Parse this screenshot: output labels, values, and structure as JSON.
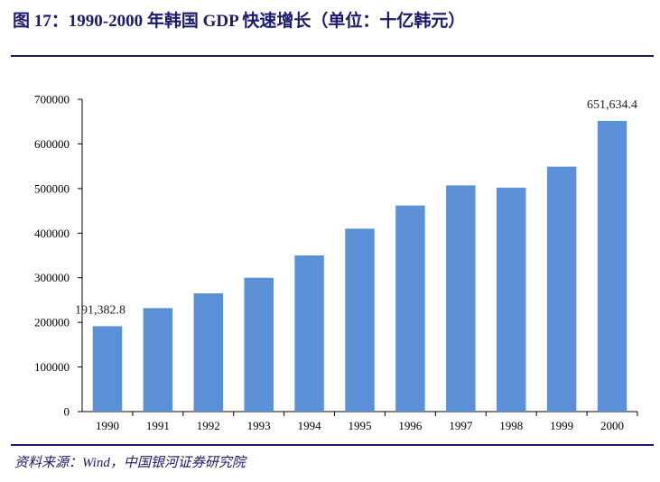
{
  "header": {
    "title": "图 17：1990-2000 年韩国 GDP 快速增长（单位：十亿韩元）"
  },
  "footer": {
    "source": "资料来源：Wind，中国银河证券研究院"
  },
  "colors": {
    "bar": "#5b8fd6",
    "title": "#1a1a6e",
    "axis": "#000000"
  },
  "chart_data": {
    "type": "bar",
    "title": "",
    "xlabel": "",
    "ylabel": "",
    "categories": [
      "1990",
      "1991",
      "1992",
      "1993",
      "1994",
      "1995",
      "1996",
      "1997",
      "1998",
      "1999",
      "2000"
    ],
    "values": [
      191382.8,
      232000,
      265000,
      300000,
      350000,
      410000,
      462000,
      507000,
      502000,
      549000,
      651634.4
    ],
    "ylim": [
      0,
      700000
    ],
    "yticks": [
      "0",
      "100000",
      "200000",
      "300000",
      "400000",
      "500000",
      "600000",
      "700000"
    ],
    "data_labels": [
      {
        "category": "1990",
        "text": "191,382.8"
      },
      {
        "category": "2000",
        "text": "651,634.4"
      }
    ],
    "grid": false,
    "legend": "none"
  }
}
